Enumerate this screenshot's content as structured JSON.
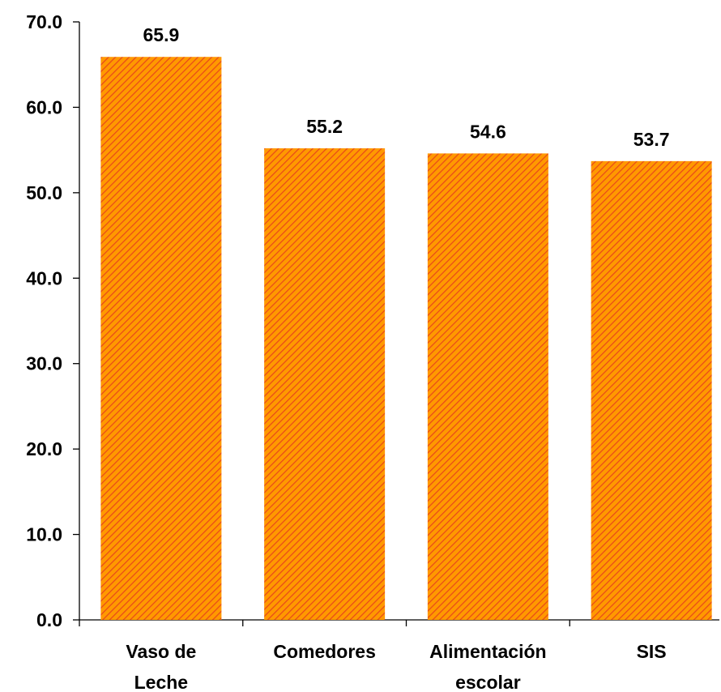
{
  "chart_data": {
    "type": "bar",
    "categories": [
      [
        "Vaso de",
        "Leche"
      ],
      [
        "Comedores"
      ],
      [
        "Alimentación",
        "escolar"
      ],
      [
        "SIS"
      ]
    ],
    "values": [
      65.9,
      55.2,
      54.6,
      53.7
    ],
    "value_labels": [
      "65.9",
      "55.2",
      "54.6",
      "53.7"
    ],
    "y_ticks": [
      "0.0",
      "10.0",
      "20.0",
      "30.0",
      "40.0",
      "50.0",
      "60.0",
      "70.0"
    ],
    "ylim": [
      0,
      70
    ],
    "grid": false,
    "legend": "none",
    "title": "",
    "xlabel": "",
    "ylabel": "",
    "colors": {
      "bar_fill": "#FF9900",
      "bar_hatch": "#E8471A",
      "axis": "#000000"
    }
  }
}
